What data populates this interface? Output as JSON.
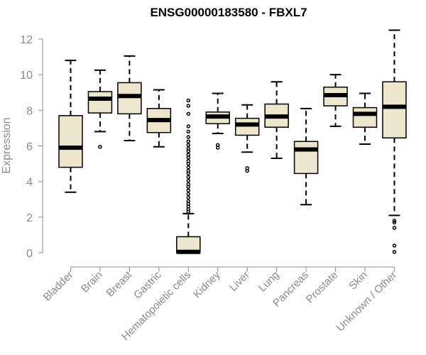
{
  "chart_data": {
    "type": "box",
    "title": "ENSG00000183580 - FBXL7",
    "xlabel": "",
    "ylabel": "Expression",
    "ylim": [
      0,
      12.5
    ],
    "yticks": [
      0,
      2,
      4,
      6,
      8,
      10,
      12
    ],
    "grid": false,
    "legend": "none",
    "colors": {
      "box_fill": "#ede6ce",
      "box_stroke": "#000000",
      "axis": "#8a8a8a",
      "median": "#000000"
    },
    "categories": [
      "Bladder",
      "Brain",
      "Breast",
      "Gastric",
      "Hematopoietic cells",
      "Kidney",
      "Liver",
      "Lung",
      "Pancreas",
      "Prostate",
      "Skin",
      "Unknown / Other"
    ],
    "boxes": [
      {
        "category": "Bladder",
        "whisker_low": 3.4,
        "q1": 4.8,
        "median": 5.9,
        "q3": 7.7,
        "whisker_high": 10.8,
        "outliers": []
      },
      {
        "category": "Brain",
        "whisker_low": 6.8,
        "q1": 7.85,
        "median": 8.65,
        "q3": 9.05,
        "whisker_high": 10.25,
        "outliers": [
          5.95
        ]
      },
      {
        "category": "Breast",
        "whisker_low": 6.3,
        "q1": 7.8,
        "median": 8.8,
        "q3": 9.55,
        "whisker_high": 11.05,
        "outliers": []
      },
      {
        "category": "Gastric",
        "whisker_low": 5.95,
        "q1": 6.75,
        "median": 7.45,
        "q3": 8.1,
        "whisker_high": 9.15,
        "outliers": []
      },
      {
        "category": "Hematopoietic cells",
        "whisker_low": 0.0,
        "q1": 0.0,
        "median": 0.05,
        "q3": 0.9,
        "whisker_high": 2.2,
        "outliers": [
          2.3,
          2.45,
          2.6,
          2.75,
          2.9,
          3.1,
          3.3,
          3.5,
          3.7,
          3.85,
          4.05,
          4.25,
          4.45,
          4.6,
          4.8,
          5.0,
          5.15,
          5.35,
          5.5,
          5.7,
          5.85,
          6.05,
          6.25,
          6.5,
          6.8,
          7.1,
          7.8,
          8.25,
          8.55
        ]
      },
      {
        "category": "Kidney",
        "whisker_low": 6.7,
        "q1": 7.25,
        "median": 7.65,
        "q3": 7.9,
        "whisker_high": 8.95,
        "outliers": [
          6.05,
          5.9
        ]
      },
      {
        "category": "Liver",
        "whisker_low": 5.65,
        "q1": 6.6,
        "median": 7.2,
        "q3": 7.55,
        "whisker_high": 8.3,
        "outliers": [
          4.75,
          4.6
        ]
      },
      {
        "category": "Lung",
        "whisker_low": 5.3,
        "q1": 7.05,
        "median": 7.65,
        "q3": 8.35,
        "whisker_high": 9.6,
        "outliers": []
      },
      {
        "category": "Pancreas",
        "whisker_low": 2.7,
        "q1": 4.45,
        "median": 5.8,
        "q3": 6.25,
        "whisker_high": 8.1,
        "outliers": []
      },
      {
        "category": "Prostate",
        "whisker_low": 7.1,
        "q1": 8.25,
        "median": 8.85,
        "q3": 9.3,
        "whisker_high": 10.0,
        "outliers": []
      },
      {
        "category": "Skin",
        "whisker_low": 6.1,
        "q1": 7.05,
        "median": 7.8,
        "q3": 8.15,
        "whisker_high": 8.95,
        "outliers": []
      },
      {
        "category": "Unknown / Other",
        "whisker_low": 2.1,
        "q1": 6.45,
        "median": 8.2,
        "q3": 9.6,
        "whisker_high": 12.5,
        "outliers": [
          1.8,
          1.7,
          1.4,
          0.4,
          0.05
        ]
      }
    ]
  }
}
